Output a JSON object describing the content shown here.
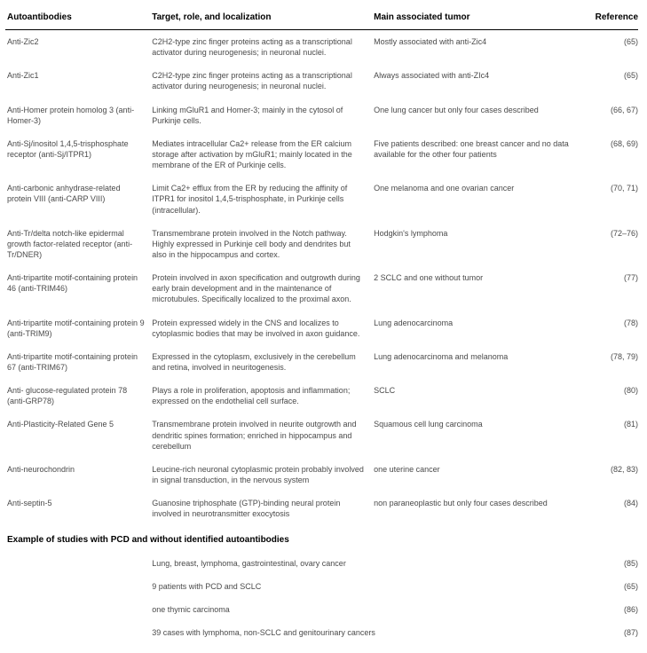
{
  "headers": {
    "c1": "Autoantibodies",
    "c2": "Target, role, and localization",
    "c3": "Main associated tumor",
    "c4": "Reference"
  },
  "rows": [
    {
      "c1": "Anti-Zic2",
      "c2": "C2H2-type zinc finger proteins acting as a transcriptional activator during neurogenesis; in neuronal nuclei.",
      "c3": "Mostly associated with anti-Zic4",
      "ref": "(65)"
    },
    {
      "c1": "Anti-Zic1",
      "c2": "C2H2-type zinc finger proteins acting as a transcriptional activator during neurogenesis; in neuronal nuclei.",
      "c3": "Always associated with anti-ZIc4",
      "ref": "(65)"
    },
    {
      "c1": "Anti-Homer protein homolog 3 (anti-Homer-3)",
      "c2": "Linking mGluR1 and Homer-3; mainly in the cytosol of Purkinje cells.",
      "c3": "One lung cancer but only four cases described",
      "ref": "(66, 67)"
    },
    {
      "c1": "Anti-Sj/inositol 1,4,5-trisphosphate receptor (anti-Sj/ITPR1)",
      "c2": "Mediates intracellular Ca2+ release from the ER calcium storage after activation by mGluR1; mainly located in the membrane of the ER of Purkinje cells.",
      "c3": "Five patients described: one breast cancer and no data available for the other four patients",
      "ref": "(68, 69)"
    },
    {
      "c1": "Anti-carbonic anhydrase-related protein VIII (anti-CARP VIII)",
      "c2": "Limit Ca2+ efflux from the ER by reducing the affinity of ITPR1 for inositol 1,4,5-trisphosphate, in Purkinje cells (intracellular).",
      "c3": "One melanoma and one ovarian cancer",
      "ref": "(70, 71)"
    },
    {
      "c1": "Anti-Tr/delta notch-like epidermal growth factor-related receptor (anti-Tr/DNER)",
      "c2": "Transmembrane protein involved in the Notch pathway. Highly expressed in Purkinje cell body and dendrites but also in the hippocampus and cortex.",
      "c3": "Hodgkin's lymphoma",
      "ref": "(72–76)"
    },
    {
      "c1": "Anti-tripartite motif-containing protein 46 (anti-TRIM46)",
      "c2": "Protein involved in axon specification and outgrowth during early brain development and in the maintenance of microtubules. Specifically localized to the proximal axon.",
      "c3": "2 SCLC and one without tumor",
      "ref": "(77)"
    },
    {
      "c1": "Anti-tripartite motif-containing protein 9 (anti-TRIM9)",
      "c2": "Protein expressed widely in the CNS and localizes to cytoplasmic bodies that may be involved in axon guidance.",
      "c3": "Lung adenocarcinoma",
      "ref": "(78)"
    },
    {
      "c1": "Anti-tripartite motif-containing protein 67 (anti-TRIM67)",
      "c2": "Expressed in the cytoplasm, exclusively in the cerebellum and retina, involved in neuritogenesis.",
      "c3": "Lung adenocarcinoma and melanoma",
      "ref": "(78, 79)"
    },
    {
      "c1": "Anti- glucose-regulated protein 78 (anti-GRP78)",
      "c2": "Plays a role in proliferation, apoptosis and inflammation; expressed on the endothelial cell surface.",
      "c3": "SCLC",
      "ref": "(80)"
    },
    {
      "c1": "Anti-Plasticity-Related Gene 5",
      "c2": "Transmembrane protein involved in neurite outgrowth and dendritic spines formation; enriched in hippocampus and cerebellum",
      "c3": "Squamous cell lung carcinoma",
      "ref": "(81)"
    },
    {
      "c1": "Anti-neurochondrin",
      "c2": "Leucine-rich neuronal cytoplasmic protein probably involved in signal transduction, in the nervous system",
      "c3": "one uterine cancer",
      "ref": "(82, 83)"
    },
    {
      "c1": "Anti-septin-5",
      "c2": "Guanosine triphosphate (GTP)-binding neural protein involved in neurotransmitter exocytosis",
      "c3": "non paraneoplastic but only four cases described",
      "ref": "(84)"
    }
  ],
  "section": {
    "title": "Example of studies with PCD and without identified autoantibodies"
  },
  "sectionRows": [
    {
      "c2": "Lung, breast, lymphoma, gastrointestinal, ovary cancer",
      "ref": "(85)"
    },
    {
      "c2": "9 patients with PCD and SCLC",
      "ref": "(65)"
    },
    {
      "c2": "one thymic carcinoma",
      "ref": "(86)"
    },
    {
      "c2": "39 cases with lymphoma, non-SCLC and genitourinary cancers",
      "ref": "(87)"
    }
  ]
}
